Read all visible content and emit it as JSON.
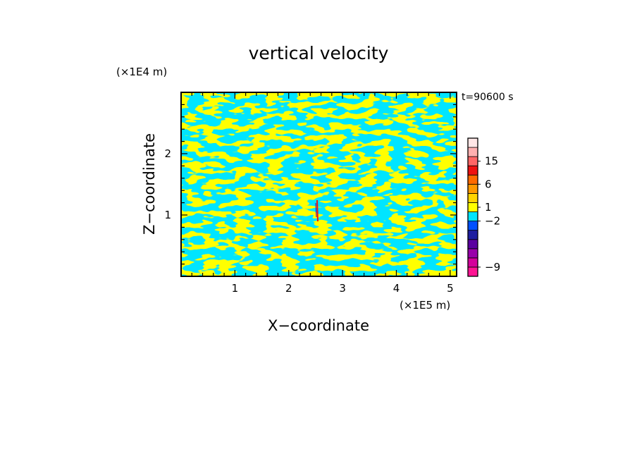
{
  "chart_data": {
    "type": "heatmap",
    "title": "vertical velocity",
    "time_label": "t=90600 s",
    "xlabel": "X−coordinate",
    "ylabel": "Z−coordinate",
    "x_unit": "(×1E5 m)",
    "y_unit": "(×1E4 m)",
    "xlim": [
      0,
      5.12
    ],
    "ylim": [
      0,
      3.0
    ],
    "x_ticks": [
      1,
      2,
      3,
      4,
      5
    ],
    "x_tick_labels": [
      "1",
      "2",
      "3",
      "4",
      "5"
    ],
    "y_ticks": [
      1,
      2
    ],
    "y_tick_labels": [
      "1",
      "2"
    ],
    "dominant_colors": {
      "positive": "#ffff00",
      "negative": "#00e5ff"
    },
    "colorbar": {
      "bins": [
        {
          "color": "#ff1493"
        },
        {
          "color": "#d4009b"
        },
        {
          "color": "#9900aa"
        },
        {
          "color": "#5a00a0"
        },
        {
          "color": "#1e1ea0"
        },
        {
          "color": "#0050ff"
        },
        {
          "color": "#00e5ff"
        },
        {
          "color": "#ffff00"
        },
        {
          "color": "#ffd400"
        },
        {
          "color": "#ff9900"
        },
        {
          "color": "#ff6a00"
        },
        {
          "color": "#ee1111"
        },
        {
          "color": "#ff6666"
        },
        {
          "color": "#ffb0b0"
        },
        {
          "color": "#ffe6e6"
        }
      ],
      "labels": [
        {
          "text": "15",
          "bin": 12.5
        },
        {
          "text": "6",
          "bin": 10
        },
        {
          "text": "1",
          "bin": 7.5
        },
        {
          "text": "−2",
          "bin": 6
        },
        {
          "text": "−9",
          "bin": 1
        }
      ]
    }
  }
}
